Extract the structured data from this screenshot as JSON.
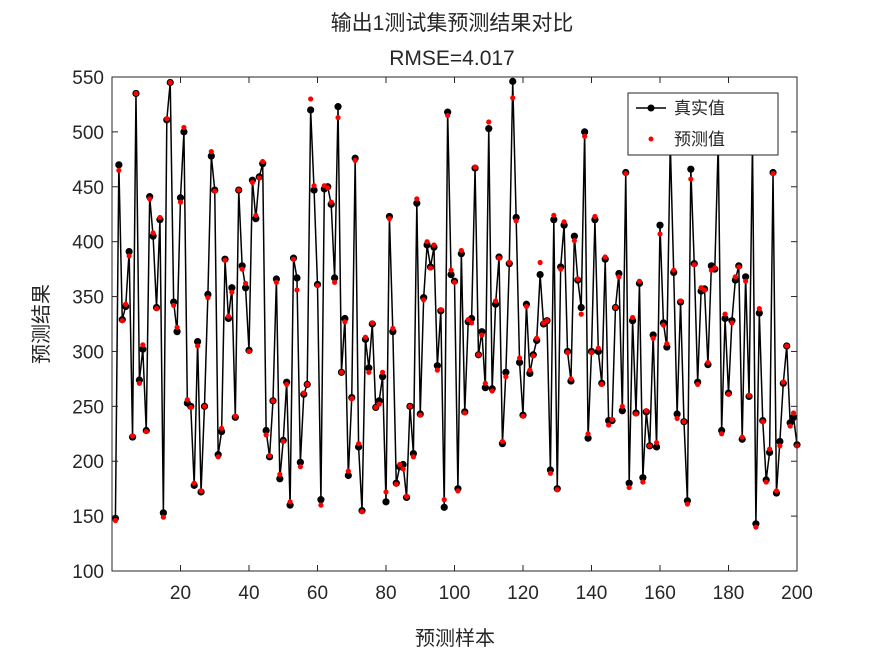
{
  "chart_data": {
    "type": "line",
    "title": "输出1测试集预测结果对比",
    "subtitle": "RMSE=4.017",
    "xlabel": "预测样本",
    "ylabel": "预测结果",
    "xlim": [
      0,
      200
    ],
    "ylim": [
      100,
      550
    ],
    "xticks": [
      20,
      40,
      60,
      80,
      100,
      120,
      140,
      160,
      180,
      200
    ],
    "yticks": [
      100,
      150,
      200,
      250,
      300,
      350,
      400,
      450,
      500,
      550
    ],
    "grid": false,
    "legend_position": "top-right",
    "series": [
      {
        "name": "真实值",
        "color": "#000000",
        "style": "line-with-dot-markers",
        "values": [
          148,
          470,
          329,
          341,
          391,
          222,
          535,
          274,
          302,
          228,
          441,
          405,
          340,
          420,
          153,
          511,
          545,
          345,
          318,
          440,
          500,
          253,
          250,
          178,
          309,
          172,
          250,
          352,
          478,
          447,
          206,
          227,
          384,
          330,
          358,
          240,
          447,
          378,
          358,
          301,
          456,
          421,
          459,
          471,
          228,
          204,
          255,
          366,
          184,
          219,
          272,
          160,
          385,
          367,
          199,
          261,
          270,
          520,
          447,
          361,
          165,
          448,
          450,
          434,
          367,
          523,
          281,
          330,
          187,
          258,
          476,
          213,
          155,
          311,
          285,
          325,
          249,
          255,
          277,
          163,
          423,
          318,
          180,
          195,
          197,
          167,
          250,
          207,
          435,
          243,
          349,
          397,
          377,
          395,
          287,
          337,
          158,
          518,
          370,
          364,
          175,
          389,
          245,
          327,
          330,
          467,
          297,
          318,
          267,
          503,
          266,
          343,
          386,
          216,
          281,
          380,
          546,
          422,
          290,
          242,
          343,
          280,
          297,
          310,
          370,
          325,
          328,
          192,
          420,
          175,
          377,
          415,
          300,
          273,
          405,
          365,
          340,
          500,
          221,
          300,
          420,
          300,
          271,
          384,
          237,
          237,
          340,
          371,
          246,
          463,
          180,
          328,
          244,
          362,
          185,
          245,
          214,
          315,
          213,
          415,
          326,
          304,
          490,
          372,
          243,
          345,
          236,
          164,
          466,
          380,
          272,
          355,
          357,
          288,
          378,
          375,
          490,
          228,
          330,
          262,
          328,
          365,
          378,
          220,
          368,
          259,
          490,
          143,
          335,
          237,
          183,
          208,
          463,
          171,
          218,
          271,
          305,
          235,
          240,
          215
        ]
      },
      {
        "name": "预测值",
        "color": "#ff0000",
        "style": "dot-markers",
        "values": [
          146,
          465,
          328,
          343,
          387,
          223,
          535,
          271,
          306,
          227,
          439,
          408,
          339,
          422,
          149,
          512,
          545,
          342,
          322,
          436,
          504,
          256,
          249,
          180,
          305,
          173,
          250,
          349,
          482,
          446,
          204,
          230,
          383,
          332,
          354,
          241,
          447,
          375,
          362,
          300,
          454,
          424,
          458,
          473,
          224,
          205,
          255,
          363,
          188,
          218,
          270,
          163,
          384,
          356,
          195,
          262,
          270,
          530,
          451,
          360,
          160,
          451,
          449,
          436,
          363,
          513,
          281,
          327,
          191,
          257,
          474,
          216,
          154,
          313,
          281,
          326,
          249,
          252,
          281,
          172,
          421,
          321,
          179,
          197,
          193,
          168,
          250,
          204,
          439,
          242,
          347,
          400,
          376,
          397,
          283,
          338,
          165,
          515,
          374,
          363,
          173,
          392,
          244,
          329,
          326,
          468,
          297,
          315,
          271,
          509,
          264,
          346,
          385,
          218,
          277,
          381,
          531,
          419,
          294,
          241,
          341,
          283,
          296,
          312,
          381,
          326,
          328,
          189,
          424,
          174,
          375,
          418,
          299,
          275,
          401,
          366,
          334,
          496,
          225,
          299,
          423,
          303,
          270,
          386,
          233,
          238,
          340,
          368,
          250,
          462,
          176,
          331,
          243,
          364,
          181,
          246,
          214,
          312,
          217,
          407,
          324,
          307,
          489,
          374,
          239,
          346,
          236,
          161,
          457,
          379,
          270,
          358,
          356,
          290,
          374,
          376,
          490,
          225,
          334,
          261,
          326,
          368,
          377,
          222,
          364,
          260,
          490,
          140,
          339,
          236,
          181,
          211,
          462,
          173,
          214,
          272,
          305,
          232,
          244,
          214
        ]
      }
    ]
  }
}
